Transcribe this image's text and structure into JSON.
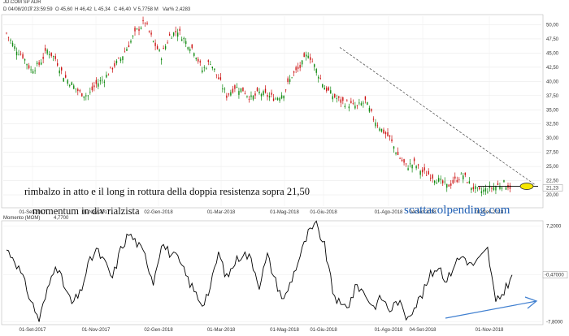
{
  "header": {
    "symbol": "JD.COM SP ADR",
    "date": "D 04/08/2017",
    "time": "T 23:59:59",
    "open": "O 45,60",
    "high": "H 46,42",
    "low": "L 45,34",
    "close": "C 46,40",
    "volume": "V 5,7758 M",
    "change": "Var% 2,4283"
  },
  "annotations": {
    "line1": "rimbalzo in atto e il long in rottura della doppia resistenza sopra 21,50",
    "line2": "momentum in div rialzista",
    "brand": "scattacolpending.com"
  },
  "chart_data": [
    {
      "type": "candlestick",
      "title": "",
      "ylim": [
        18.0,
        51.5
      ],
      "y_ticks": [
        "20,00",
        "22,50",
        "25,00",
        "27,50",
        "30,00",
        "32,50",
        "35,00",
        "37,50",
        "40,00",
        "42,50",
        "45,00",
        "47,50",
        "50,00"
      ],
      "x_ticks": [
        "01-Set-2017",
        "01-Nov-2017",
        "02-Gen-2018",
        "01-Mar-2018",
        "01-Mag-2018",
        "01-Giu-2018",
        "01-Ago-2018",
        "04-Set-2018",
        "01-Nov-2018"
      ],
      "last_price_label": "21,23",
      "resistance_level": 21.5,
      "trendline": {
        "from": [
          "01-Giu-2018",
          46.0
        ],
        "to": [
          "end",
          21.8
        ]
      },
      "approx_close_path": [
        48.5,
        46.0,
        44.5,
        42.0,
        43.0,
        45.5,
        44.0,
        41.0,
        39.5,
        38.0,
        37.5,
        39.5,
        40.5,
        42.5,
        44.0,
        46.5,
        49.0,
        50.5,
        47.0,
        44.5,
        48.0,
        49.0,
        47.0,
        45.5,
        42.0,
        43.5,
        40.5,
        37.5,
        39.0,
        38.5,
        37.0,
        38.0,
        37.5,
        37.0,
        38.0,
        41.0,
        42.5,
        45.0,
        42.0,
        39.0,
        37.5,
        36.5,
        36.0,
        35.5,
        36.5,
        33.5,
        31.5,
        30.0,
        27.0,
        25.0,
        25.5,
        24.0,
        23.5,
        22.5,
        21.5,
        22.5,
        23.5,
        21.5,
        20.5,
        21.0,
        21.5,
        22.0,
        21.2
      ]
    },
    {
      "type": "line",
      "title": "Momento (MOM)",
      "current_value_label": "4,7700",
      "ylim": [
        -8.0,
        7.5
      ],
      "y_ticks": [
        "7,2000",
        "-0,47000",
        "-7,8000"
      ],
      "last_value_label": "-0,47000",
      "x_ticks": [
        "01-Set-2017",
        "01-Nov-2017",
        "02-Gen-2018",
        "01-Mar-2018",
        "01-Mag-2018",
        "01-Giu-2018",
        "01-Ago-2018",
        "04-Set-2018",
        "01-Nov-2018"
      ],
      "approx_values": [
        3.5,
        2.0,
        -1.0,
        -4.5,
        -7.5,
        -3.0,
        1.5,
        -2.0,
        -5.0,
        -3.5,
        1.0,
        3.5,
        1.5,
        -1.0,
        3.5,
        6.0,
        4.5,
        2.5,
        -1.5,
        4.5,
        3.0,
        2.0,
        -0.5,
        -3.0,
        -5.0,
        -2.5,
        3.0,
        -1.0,
        1.5,
        3.0,
        2.0,
        -2.0,
        2.5,
        -1.5,
        -4.5,
        -1.0,
        2.5,
        6.0,
        7.3,
        4.0,
        -3.0,
        -5.5,
        -5.0,
        -2.0,
        -3.5,
        -5.5,
        -4.0,
        -6.0,
        -4.5,
        -7.0,
        -5.5,
        -3.5,
        -0.5,
        1.0,
        -1.5,
        1.5,
        2.5,
        1.0,
        2.0,
        3.5,
        -5.0,
        -3.0,
        -0.47
      ],
      "divergence_arrow": true
    }
  ]
}
